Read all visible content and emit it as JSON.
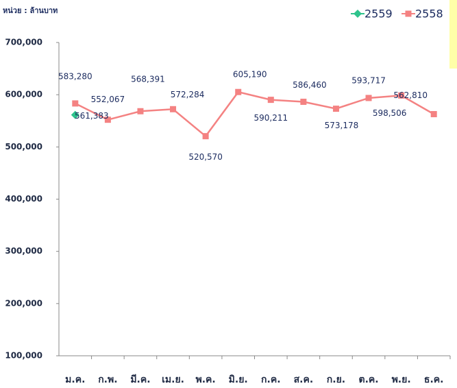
{
  "chart_data": {
    "type": "line",
    "unit_label": "หน่วย : ล้านบาท",
    "categories": [
      "ม.ค.",
      "ก.พ.",
      "มี.ค.",
      "เม.ย.",
      "พ.ค.",
      "มิ.ย.",
      "ก.ค.",
      "ส.ค.",
      "ก.ย.",
      "ต.ค.",
      "พ.ย.",
      "ธ.ค."
    ],
    "series": [
      {
        "name": "2559",
        "color": "#2ec38c",
        "marker": "diamond",
        "values": [
          561383,
          null,
          null,
          null,
          null,
          null,
          null,
          null,
          null,
          null,
          null,
          null
        ],
        "value_labels": [
          "561,383",
          null,
          null,
          null,
          null,
          null,
          null,
          null,
          null,
          null,
          null,
          null
        ]
      },
      {
        "name": "2558",
        "color": "#f48282",
        "marker": "square",
        "values": [
          583280,
          552067,
          568391,
          572284,
          520570,
          605190,
          590211,
          586460,
          573178,
          593717,
          598506,
          562810
        ],
        "value_labels": [
          "583,280",
          "552,067",
          "568,391",
          "572,284",
          "520,570",
          "605,190",
          "590,211",
          "586,460",
          "573,178",
          "593,717",
          "598,506",
          "562,810"
        ]
      }
    ],
    "ylim": [
      100000,
      700000
    ],
    "yticks": [
      {
        "value": 100000,
        "label": "100,000"
      },
      {
        "value": 200000,
        "label": "200,000"
      },
      {
        "value": 300000,
        "label": "300,000"
      },
      {
        "value": 400000,
        "label": "400,000"
      },
      {
        "value": 500000,
        "label": "500,000"
      },
      {
        "value": 600000,
        "label": "600,000"
      },
      {
        "value": 700000,
        "label": "700,000"
      }
    ],
    "grid": false,
    "legend": "top-right"
  }
}
